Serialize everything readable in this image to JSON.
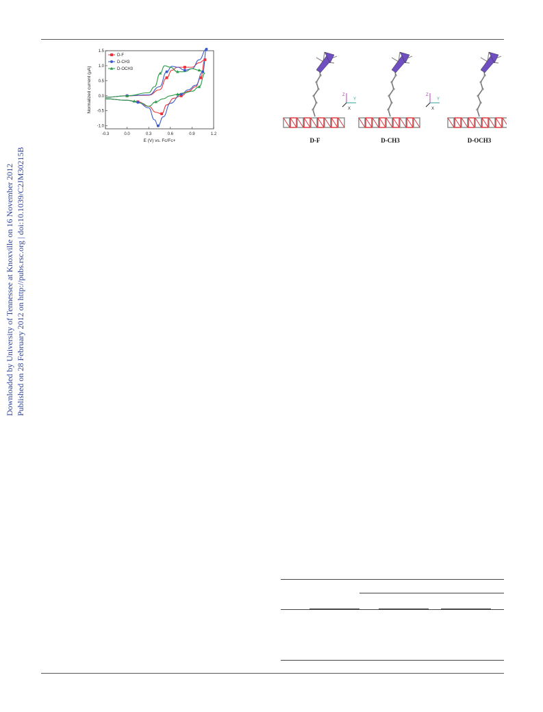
{
  "sidebar": {
    "line1": "Downloaded by University of Tennessee at Knoxville on 16 November 2012",
    "line2": "Published on 28 February 2012 on http://pubs.rsc.org | doi:10.1039/C2JM30215B"
  },
  "chart_data": {
    "type": "line",
    "xlabel": "E (V) vs. Fc/Fc+",
    "ylabel": "Normalized current (μA)",
    "xlim": [
      -0.3,
      1.2
    ],
    "ylim": [
      -1.1,
      1.5
    ],
    "xticks": [
      "-0.3",
      "0.0",
      "0.3",
      "0.6",
      "0.9",
      "1.2"
    ],
    "yticks": [
      "-1.0",
      "-0.5",
      "0.0",
      "0.5",
      "1.0",
      "1.5"
    ],
    "legend_position": "top-left",
    "grid": false,
    "series": [
      {
        "name": "D-F",
        "color": "#e8343a",
        "marker": "square",
        "forward": [
          [
            -0.3,
            -0.05
          ],
          [
            0.0,
            0.0
          ],
          [
            0.3,
            0.02
          ],
          [
            0.45,
            0.2
          ],
          [
            0.55,
            0.6
          ],
          [
            0.62,
            0.85
          ],
          [
            0.7,
            0.95
          ],
          [
            0.8,
            0.95
          ],
          [
            0.9,
            0.95
          ],
          [
            1.0,
            1.1
          ],
          [
            1.08,
            1.2
          ]
        ],
        "reverse": [
          [
            1.08,
            1.2
          ],
          [
            1.02,
            0.6
          ],
          [
            0.95,
            0.3
          ],
          [
            0.85,
            0.15
          ],
          [
            0.75,
            0.0
          ],
          [
            0.65,
            -0.08
          ],
          [
            0.55,
            -0.3
          ],
          [
            0.48,
            -0.6
          ],
          [
            0.4,
            -0.55
          ],
          [
            0.3,
            -0.35
          ],
          [
            0.15,
            -0.2
          ],
          [
            0.0,
            -0.15
          ],
          [
            -0.3,
            -0.1
          ]
        ]
      },
      {
        "name": "D-CH3",
        "color": "#3a5bc8",
        "marker": "circle",
        "forward": [
          [
            -0.3,
            -0.05
          ],
          [
            0.0,
            0.0
          ],
          [
            0.3,
            0.03
          ],
          [
            0.45,
            0.3
          ],
          [
            0.55,
            0.8
          ],
          [
            0.62,
            0.98
          ],
          [
            0.7,
            0.95
          ],
          [
            0.8,
            0.85
          ],
          [
            0.9,
            0.9
          ],
          [
            1.0,
            1.2
          ],
          [
            1.1,
            1.55
          ]
        ],
        "reverse": [
          [
            1.1,
            1.55
          ],
          [
            1.05,
            0.8
          ],
          [
            0.95,
            0.35
          ],
          [
            0.85,
            0.2
          ],
          [
            0.75,
            0.05
          ],
          [
            0.6,
            -0.25
          ],
          [
            0.5,
            -0.7
          ],
          [
            0.43,
            -1.0
          ],
          [
            0.38,
            -0.8
          ],
          [
            0.3,
            -0.4
          ],
          [
            0.15,
            -0.22
          ],
          [
            0.0,
            -0.15
          ],
          [
            -0.3,
            -0.1
          ]
        ]
      },
      {
        "name": "D-OCH3",
        "color": "#2d9a4a",
        "marker": "triangle",
        "forward": [
          [
            -0.3,
            -0.05
          ],
          [
            0.0,
            0.0
          ],
          [
            0.3,
            0.1
          ],
          [
            0.38,
            0.3
          ],
          [
            0.46,
            0.75
          ],
          [
            0.52,
            1.0
          ],
          [
            0.6,
            0.95
          ],
          [
            0.7,
            0.8
          ],
          [
            0.8,
            0.8
          ],
          [
            0.9,
            0.9
          ],
          [
            1.0,
            0.85
          ],
          [
            1.08,
            0.75
          ]
        ],
        "reverse": [
          [
            1.08,
            0.75
          ],
          [
            1.0,
            0.3
          ],
          [
            0.9,
            0.15
          ],
          [
            0.8,
            0.1
          ],
          [
            0.7,
            0.05
          ],
          [
            0.6,
            0.0
          ],
          [
            0.5,
            -0.1
          ],
          [
            0.4,
            -0.2
          ],
          [
            0.3,
            -0.35
          ],
          [
            0.2,
            -0.25
          ],
          [
            0.1,
            -0.18
          ],
          [
            0.0,
            -0.15
          ],
          [
            -0.3,
            -0.1
          ]
        ]
      }
    ]
  },
  "molecules": {
    "labels": [
      "D-F",
      "D-CH3",
      "D-OCH3"
    ],
    "arrow_color": "#7050c0",
    "atom_red": "#d9343a",
    "atom_gray": "#888888",
    "axis_colors": {
      "z": "#b040b0",
      "y": "#30a0a0",
      "x": "#222222"
    },
    "axis_labels": {
      "z": "Z",
      "y": "Y",
      "x": "X"
    }
  }
}
